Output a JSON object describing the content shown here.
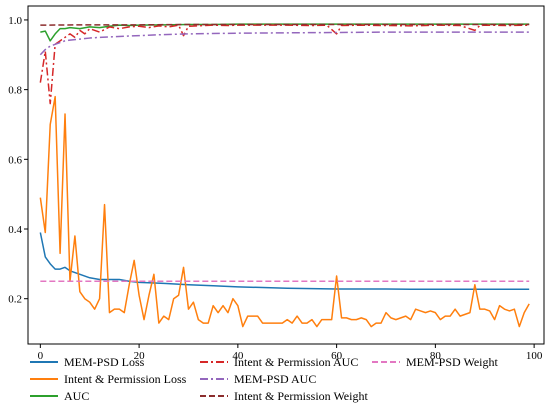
{
  "chart_data": {
    "type": "line",
    "xlim": [
      -2.5,
      102
    ],
    "ylim": [
      0.07,
      1.04
    ],
    "x_ticks": [
      0,
      20,
      40,
      60,
      80,
      100
    ],
    "x_tick_labels": [
      "0",
      "20",
      "40",
      "60",
      "80",
      "100"
    ],
    "y_ticks": [
      0.2,
      0.4,
      0.6,
      0.8,
      1.0
    ],
    "y_tick_labels": [
      "0.2",
      "0.4",
      "0.6",
      "0.8",
      "1.0"
    ],
    "grid": false,
    "legend_position": "bottom, outside plot, 3 columns",
    "series": [
      {
        "name": "MEM-PSD Loss",
        "color": "#1f77b4",
        "dash": "solid",
        "points": [
          [
            0,
            0.39
          ],
          [
            1,
            0.32
          ],
          [
            2,
            0.3
          ],
          [
            3,
            0.285
          ],
          [
            4,
            0.285
          ],
          [
            5,
            0.29
          ],
          [
            6,
            0.28
          ],
          [
            7,
            0.275
          ],
          [
            8,
            0.27
          ],
          [
            9,
            0.265
          ],
          [
            10,
            0.26
          ],
          [
            12,
            0.255
          ],
          [
            14,
            0.255
          ],
          [
            16,
            0.255
          ],
          [
            18,
            0.25
          ],
          [
            20,
            0.247
          ],
          [
            25,
            0.244
          ],
          [
            30,
            0.24
          ],
          [
            35,
            0.237
          ],
          [
            40,
            0.234
          ],
          [
            45,
            0.232
          ],
          [
            50,
            0.23
          ],
          [
            55,
            0.229
          ],
          [
            60,
            0.228
          ],
          [
            65,
            0.228
          ],
          [
            70,
            0.228
          ],
          [
            75,
            0.227
          ],
          [
            80,
            0.227
          ],
          [
            85,
            0.227
          ],
          [
            90,
            0.227
          ],
          [
            95,
            0.227
          ],
          [
            99,
            0.227
          ]
        ]
      },
      {
        "name": "Intent & Permission Loss",
        "color": "#ff7f0e",
        "dash": "solid",
        "points": [
          [
            0,
            0.49
          ],
          [
            1,
            0.39
          ],
          [
            2,
            0.7
          ],
          [
            3,
            0.78
          ],
          [
            4,
            0.33
          ],
          [
            5,
            0.73
          ],
          [
            6,
            0.25
          ],
          [
            7,
            0.38
          ],
          [
            8,
            0.22
          ],
          [
            9,
            0.2
          ],
          [
            10,
            0.19
          ],
          [
            11,
            0.17
          ],
          [
            12,
            0.2
          ],
          [
            13,
            0.47
          ],
          [
            14,
            0.16
          ],
          [
            15,
            0.17
          ],
          [
            16,
            0.17
          ],
          [
            17,
            0.16
          ],
          [
            18,
            0.24
          ],
          [
            19,
            0.31
          ],
          [
            20,
            0.21
          ],
          [
            21,
            0.14
          ],
          [
            22,
            0.21
          ],
          [
            23,
            0.27
          ],
          [
            24,
            0.13
          ],
          [
            25,
            0.15
          ],
          [
            26,
            0.14
          ],
          [
            27,
            0.2
          ],
          [
            28,
            0.21
          ],
          [
            29,
            0.29
          ],
          [
            30,
            0.17
          ],
          [
            31,
            0.19
          ],
          [
            32,
            0.14
          ],
          [
            33,
            0.13
          ],
          [
            34,
            0.13
          ],
          [
            35,
            0.18
          ],
          [
            36,
            0.16
          ],
          [
            37,
            0.18
          ],
          [
            38,
            0.16
          ],
          [
            39,
            0.2
          ],
          [
            40,
            0.18
          ],
          [
            41,
            0.12
          ],
          [
            42,
            0.15
          ],
          [
            43,
            0.15
          ],
          [
            44,
            0.15
          ],
          [
            45,
            0.13
          ],
          [
            46,
            0.13
          ],
          [
            47,
            0.13
          ],
          [
            48,
            0.13
          ],
          [
            49,
            0.13
          ],
          [
            50,
            0.14
          ],
          [
            51,
            0.13
          ],
          [
            52,
            0.15
          ],
          [
            53,
            0.13
          ],
          [
            54,
            0.13
          ],
          [
            55,
            0.14
          ],
          [
            56,
            0.12
          ],
          [
            57,
            0.14
          ],
          [
            58,
            0.14
          ],
          [
            59,
            0.14
          ],
          [
            60,
            0.265
          ],
          [
            61,
            0.145
          ],
          [
            62,
            0.145
          ],
          [
            63,
            0.14
          ],
          [
            64,
            0.14
          ],
          [
            65,
            0.145
          ],
          [
            66,
            0.14
          ],
          [
            67,
            0.12
          ],
          [
            68,
            0.13
          ],
          [
            69,
            0.13
          ],
          [
            70,
            0.16
          ],
          [
            71,
            0.145
          ],
          [
            72,
            0.14
          ],
          [
            73,
            0.145
          ],
          [
            74,
            0.15
          ],
          [
            75,
            0.14
          ],
          [
            76,
            0.17
          ],
          [
            77,
            0.165
          ],
          [
            78,
            0.16
          ],
          [
            79,
            0.165
          ],
          [
            80,
            0.16
          ],
          [
            81,
            0.14
          ],
          [
            82,
            0.15
          ],
          [
            83,
            0.15
          ],
          [
            84,
            0.17
          ],
          [
            85,
            0.15
          ],
          [
            86,
            0.155
          ],
          [
            87,
            0.16
          ],
          [
            88,
            0.24
          ],
          [
            89,
            0.17
          ],
          [
            90,
            0.17
          ],
          [
            91,
            0.165
          ],
          [
            92,
            0.14
          ],
          [
            93,
            0.18
          ],
          [
            94,
            0.17
          ],
          [
            95,
            0.165
          ],
          [
            96,
            0.17
          ],
          [
            97,
            0.12
          ],
          [
            98,
            0.16
          ],
          [
            99,
            0.185
          ]
        ]
      },
      {
        "name": "AUC",
        "color": "#2ca02c",
        "dash": "solid",
        "points": [
          [
            0,
            0.965
          ],
          [
            1,
            0.968
          ],
          [
            2,
            0.94
          ],
          [
            3,
            0.96
          ],
          [
            4,
            0.975
          ],
          [
            5,
            0.975
          ],
          [
            6,
            0.978
          ],
          [
            8,
            0.975
          ],
          [
            10,
            0.98
          ],
          [
            12,
            0.978
          ],
          [
            14,
            0.982
          ],
          [
            16,
            0.985
          ],
          [
            18,
            0.984
          ],
          [
            20,
            0.985
          ],
          [
            25,
            0.986
          ],
          [
            30,
            0.987
          ],
          [
            35,
            0.987
          ],
          [
            40,
            0.988
          ],
          [
            45,
            0.988
          ],
          [
            50,
            0.988
          ],
          [
            55,
            0.988
          ],
          [
            60,
            0.988
          ],
          [
            65,
            0.988
          ],
          [
            70,
            0.988
          ],
          [
            75,
            0.988
          ],
          [
            80,
            0.988
          ],
          [
            85,
            0.988
          ],
          [
            90,
            0.988
          ],
          [
            95,
            0.988
          ],
          [
            99,
            0.988
          ]
        ]
      },
      {
        "name": "Intent & Permission AUC",
        "color": "#d62728",
        "dash": "dashdot",
        "points": [
          [
            0,
            0.82
          ],
          [
            1,
            0.91
          ],
          [
            2,
            0.76
          ],
          [
            3,
            0.93
          ],
          [
            4,
            0.94
          ],
          [
            5,
            0.95
          ],
          [
            6,
            0.96
          ],
          [
            7,
            0.95
          ],
          [
            8,
            0.97
          ],
          [
            9,
            0.96
          ],
          [
            10,
            0.975
          ],
          [
            12,
            0.965
          ],
          [
            14,
            0.98
          ],
          [
            16,
            0.975
          ],
          [
            18,
            0.98
          ],
          [
            20,
            0.982
          ],
          [
            22,
            0.978
          ],
          [
            24,
            0.983
          ],
          [
            26,
            0.98
          ],
          [
            28,
            0.985
          ],
          [
            29,
            0.955
          ],
          [
            30,
            0.982
          ],
          [
            32,
            0.983
          ],
          [
            35,
            0.985
          ],
          [
            38,
            0.984
          ],
          [
            40,
            0.985
          ],
          [
            45,
            0.985
          ],
          [
            50,
            0.985
          ],
          [
            55,
            0.984
          ],
          [
            58,
            0.985
          ],
          [
            60,
            0.96
          ],
          [
            61,
            0.984
          ],
          [
            65,
            0.985
          ],
          [
            70,
            0.984
          ],
          [
            75,
            0.983
          ],
          [
            80,
            0.985
          ],
          [
            85,
            0.984
          ],
          [
            88,
            0.97
          ],
          [
            89,
            0.984
          ],
          [
            90,
            0.985
          ],
          [
            95,
            0.984
          ],
          [
            99,
            0.985
          ]
        ]
      },
      {
        "name": "MEM-PSD AUC",
        "color": "#9467bd",
        "dash": "dashdot",
        "points": [
          [
            0,
            0.9
          ],
          [
            1,
            0.915
          ],
          [
            2,
            0.925
          ],
          [
            3,
            0.93
          ],
          [
            4,
            0.935
          ],
          [
            5,
            0.94
          ],
          [
            6,
            0.942
          ],
          [
            8,
            0.945
          ],
          [
            10,
            0.948
          ],
          [
            12,
            0.95
          ],
          [
            15,
            0.952
          ],
          [
            20,
            0.955
          ],
          [
            25,
            0.958
          ],
          [
            30,
            0.96
          ],
          [
            40,
            0.962
          ],
          [
            50,
            0.963
          ],
          [
            60,
            0.964
          ],
          [
            70,
            0.965
          ],
          [
            80,
            0.965
          ],
          [
            90,
            0.965
          ],
          [
            99,
            0.965
          ]
        ]
      },
      {
        "name": "Intent & Permission Weight",
        "color": "#8c2d2d",
        "dash": "dashed",
        "points": [
          [
            0,
            0.985
          ],
          [
            10,
            0.986
          ],
          [
            20,
            0.986
          ],
          [
            30,
            0.987
          ],
          [
            40,
            0.987
          ],
          [
            50,
            0.987
          ],
          [
            60,
            0.987
          ],
          [
            70,
            0.987
          ],
          [
            80,
            0.987
          ],
          [
            90,
            0.987
          ],
          [
            99,
            0.987
          ]
        ]
      },
      {
        "name": "MEM-PSD Weight",
        "color": "#e377c2",
        "dash": "dashed",
        "points": [
          [
            0,
            0.25
          ],
          [
            99,
            0.25
          ]
        ]
      }
    ]
  }
}
